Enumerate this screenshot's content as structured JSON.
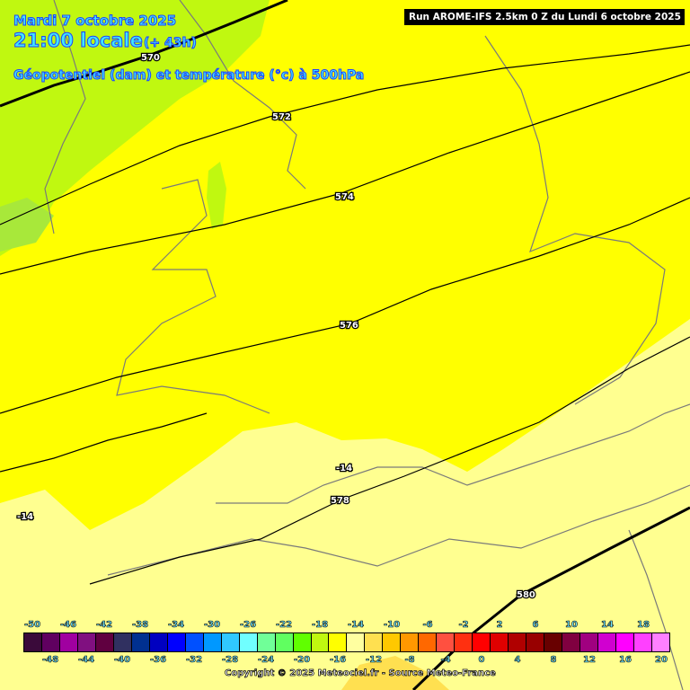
{
  "header": {
    "date": "Mardi 7 octobre 2025",
    "time": "21:00 locale",
    "lead": "(+ 43h)",
    "parameter": "Géopotentiel (dam) et température (°c) à 500hPa",
    "run": "Run AROME-IFS 2.5km 0 Z du Lundi 6 octobre 2025"
  },
  "map": {
    "fill_colors": {
      "band_-18_-16": "#c0f810",
      "band_-16_-14": "#ffff00",
      "band_-14_-12": "#ffff90"
    },
    "contour_labels": {
      "c570": "570",
      "c572": "572",
      "c574": "574",
      "c576": "576",
      "c578": "578",
      "c580": "580",
      "t1": "-14",
      "t2": "-14"
    }
  },
  "legend": {
    "colors": [
      "#3a0a3a",
      "#600060",
      "#a000a0",
      "#801080",
      "#600040",
      "#303060",
      "#003090",
      "#0000c0",
      "#0000ff",
      "#0050ff",
      "#0098ff",
      "#30c8ff",
      "#70ffff",
      "#70ff98",
      "#60ff60",
      "#60ff00",
      "#c0f810",
      "#ffff00",
      "#ffffa0",
      "#ffe050",
      "#ffc800",
      "#ff9800",
      "#ff6800",
      "#ff5040",
      "#ff3010",
      "#ff0000",
      "#e00000",
      "#b00000",
      "#980000",
      "#680000",
      "#800040",
      "#a00080",
      "#d000d0",
      "#ff00ff",
      "#ff40ff",
      "#ff80ff"
    ],
    "top_labels": [
      "-50",
      "-46",
      "-42",
      "-38",
      "-34",
      "-30",
      "-26",
      "-22",
      "-18",
      "-14",
      "-10",
      "-6",
      "-2",
      "2",
      "6",
      "10",
      "14",
      "18"
    ],
    "bottom_labels": [
      "-48",
      "-44",
      "-40",
      "-36",
      "-32",
      "-28",
      "-24",
      "-20",
      "-16",
      "-12",
      "-8",
      "-4",
      "0",
      "4",
      "8",
      "12",
      "16",
      "20"
    ]
  },
  "footer": {
    "copyright": "Copyright © 2025 Meteociel.fr - Source Meteo-France"
  }
}
